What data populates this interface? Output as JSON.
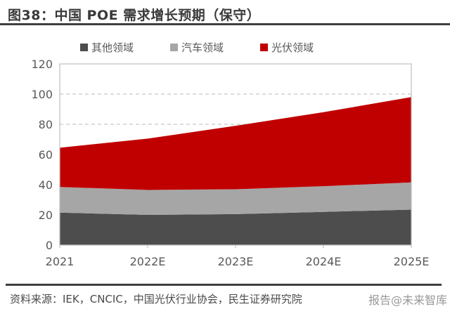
{
  "title": "图38：中国 POE 需求增长预期（保守）",
  "chart_data": {
    "type": "area",
    "stacked": true,
    "title": "中国 POE 需求增长预期（保守）",
    "categories": [
      "2021",
      "2022E",
      "2023E",
      "2024E",
      "2025E"
    ],
    "series": [
      {
        "name": "其他领域",
        "color": "#4d4d4d",
        "values": [
          21.5,
          20,
          20.5,
          22,
          23.5
        ]
      },
      {
        "name": "汽车领域",
        "color": "#a6a6a6",
        "values": [
          17,
          16.5,
          16.5,
          17,
          18
        ]
      },
      {
        "name": "光伏领域",
        "color": "#c00000",
        "values": [
          26,
          34,
          42,
          49,
          56.5
        ]
      }
    ],
    "totals": [
      64.5,
      70.5,
      79,
      88,
      98
    ],
    "xlabel": "",
    "ylabel": "",
    "ylim": [
      0,
      120
    ],
    "y_step": 20,
    "grid": "dashed-horizontal",
    "legend_position": "top-center"
  },
  "footer": {
    "source": "资料来源：IEK，CNCIC，中国光伏行业协会，民生证券研究院"
  },
  "watermark": "报告@未来智库",
  "colors": {
    "title_text": "#3a3a3a",
    "rule": "#3f3f3f",
    "axis_text": "#595959",
    "gridline": "#c8c8c8",
    "plot_border": "#bfbfbf",
    "series_other": "#4d4d4d",
    "series_auto": "#a6a6a6",
    "series_pv": "#c00000",
    "watermark_text": "#8a8a8a"
  }
}
